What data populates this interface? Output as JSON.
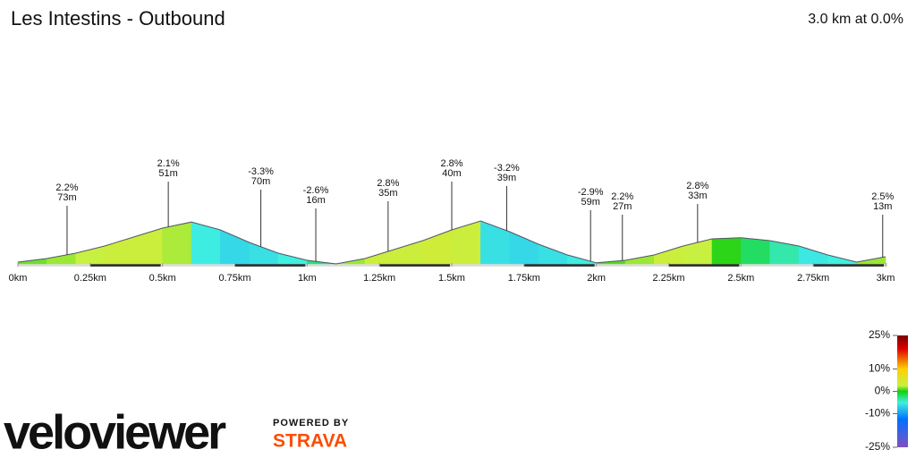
{
  "chart_data": {
    "type": "elevation",
    "title": "Les Intestins - Outbound",
    "subtitle": "3.0 km at 0.0%",
    "x": [
      0,
      0.1,
      0.2,
      0.3,
      0.4,
      0.5,
      0.6,
      0.7,
      0.8,
      0.9,
      1.0,
      1.1,
      1.2,
      1.3,
      1.4,
      1.5,
      1.6,
      1.7,
      1.8,
      1.9,
      2.0,
      2.1,
      2.2,
      2.3,
      2.4,
      2.5,
      2.6,
      2.7,
      2.8,
      2.9,
      3.0
    ],
    "elevation": [
      1,
      2,
      3.5,
      5.5,
      8,
      10.5,
      12.2,
      10,
      6.5,
      3.5,
      1.5,
      0.5,
      2,
      4.5,
      7,
      10,
      12.5,
      9.5,
      6,
      3,
      0.8,
      1.5,
      3,
      5.5,
      7.5,
      7.8,
      7,
      5.5,
      3,
      1,
      2.5
    ],
    "xlim": [
      0,
      3
    ],
    "ylim": [
      0,
      14
    ],
    "xticks": [
      {
        "value": 0,
        "label": "0km"
      },
      {
        "value": 0.25,
        "label": "0.25km"
      },
      {
        "value": 0.5,
        "label": "0.5km"
      },
      {
        "value": 0.75,
        "label": "0.75km"
      },
      {
        "value": 1,
        "label": "1km"
      },
      {
        "value": 1.25,
        "label": "1.25km"
      },
      {
        "value": 1.5,
        "label": "1.5km"
      },
      {
        "value": 1.75,
        "label": "1.75km"
      },
      {
        "value": 2,
        "label": "2km"
      },
      {
        "value": 2.25,
        "label": "2.25km"
      },
      {
        "value": 2.5,
        "label": "2.5km"
      },
      {
        "value": 2.75,
        "label": "2.75km"
      },
      {
        "value": 3,
        "label": "3km"
      }
    ],
    "annotations": [
      {
        "x": 0.17,
        "grade": "2.2%",
        "length": "73m"
      },
      {
        "x": 0.52,
        "grade": "2.1%",
        "length": "51m"
      },
      {
        "x": 0.84,
        "grade": "-3.3%",
        "length": "70m"
      },
      {
        "x": 1.03,
        "grade": "-2.6%",
        "length": "16m"
      },
      {
        "x": 1.28,
        "grade": "2.8%",
        "length": "35m"
      },
      {
        "x": 1.5,
        "grade": "2.8%",
        "length": "40m"
      },
      {
        "x": 1.69,
        "grade": "-3.2%",
        "length": "39m"
      },
      {
        "x": 1.98,
        "grade": "-2.9%",
        "length": "59m"
      },
      {
        "x": 2.09,
        "grade": "2.2%",
        "length": "27m"
      },
      {
        "x": 2.35,
        "grade": "2.8%",
        "length": "33m"
      },
      {
        "x": 2.99,
        "grade": "2.5%",
        "length": "13m"
      }
    ],
    "colorbar": {
      "lim": [
        -25,
        25
      ],
      "ticks": [
        {
          "value": 25,
          "label": "25%"
        },
        {
          "value": 10,
          "label": "10%"
        },
        {
          "value": 0,
          "label": "0%"
        },
        {
          "value": -10,
          "label": "-10%"
        },
        {
          "value": -25,
          "label": "-25%"
        }
      ]
    }
  },
  "branding": {
    "logo": "veloviewer",
    "powered": "POWERED BY",
    "strava": "STRAVA"
  }
}
